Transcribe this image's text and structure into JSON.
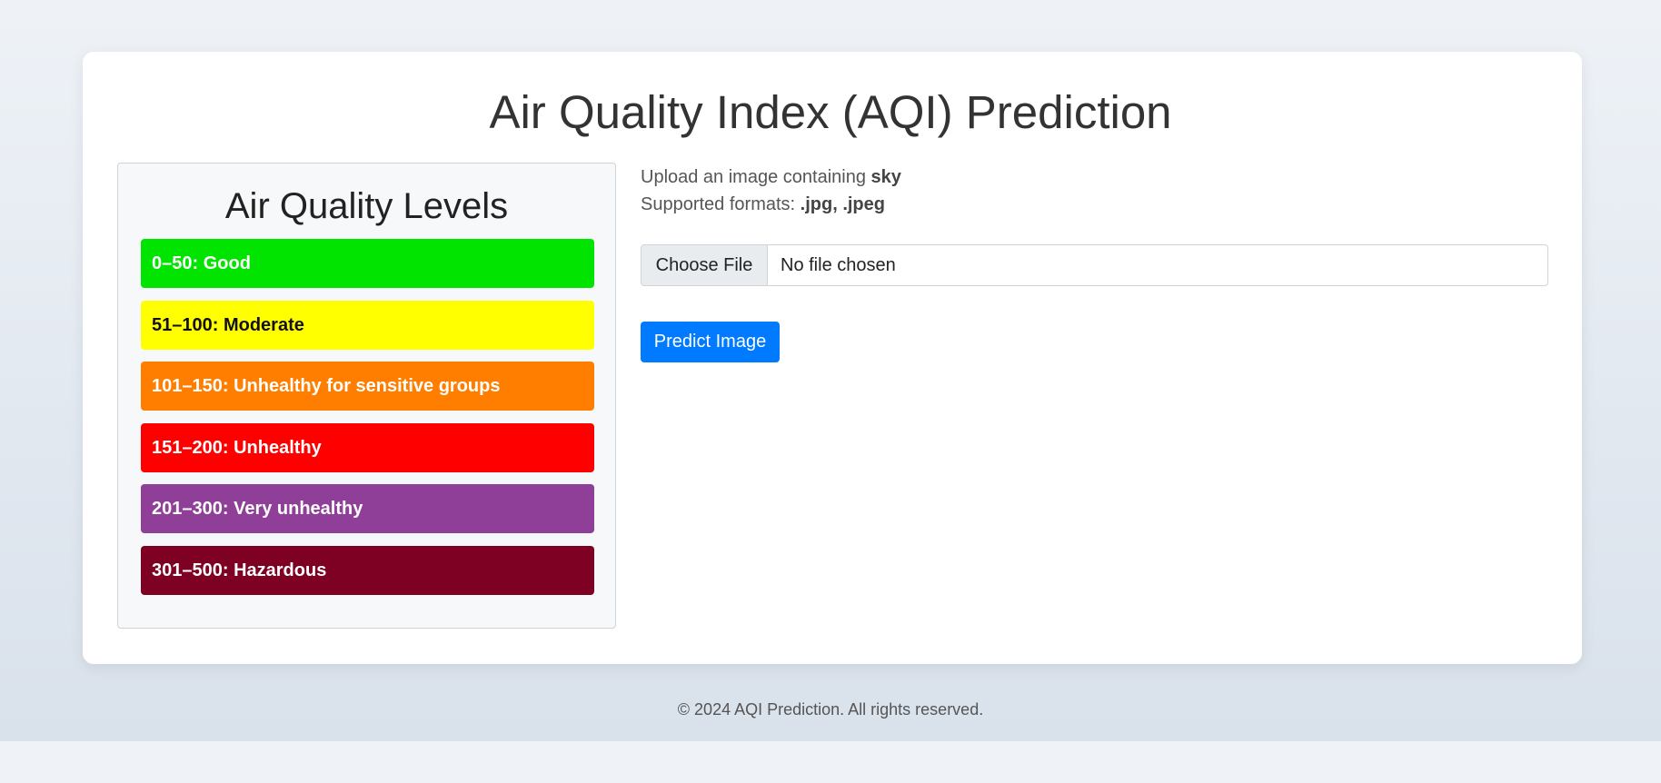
{
  "header": {
    "title": "Air Quality Index (AQI) Prediction"
  },
  "levels": {
    "title": "Air Quality Levels",
    "items": [
      {
        "label": "0–50: Good",
        "color": "#00e400"
      },
      {
        "label": "51–100: Moderate",
        "color": "#ffff00"
      },
      {
        "label": "101–150: Unhealthy for sensitive groups",
        "color": "#ff7e00"
      },
      {
        "label": "151–200: Unhealthy",
        "color": "#ff0000"
      },
      {
        "label": "201–300: Very unhealthy",
        "color": "#8f3f97"
      },
      {
        "label": "301–500: Hazardous",
        "color": "#7e0023"
      }
    ]
  },
  "upload": {
    "instruction_prefix": "Upload an image containing ",
    "instruction_subject": "sky",
    "formats_prefix": "Supported formats: ",
    "formats_value": ".jpg, .jpeg",
    "choose_file_label": "Choose File",
    "file_status": "No file chosen"
  },
  "actions": {
    "predict_label": "Predict Image",
    "predict_color": "#007bff"
  },
  "footer": {
    "text": "© 2024 AQI Prediction. All rights reserved."
  }
}
